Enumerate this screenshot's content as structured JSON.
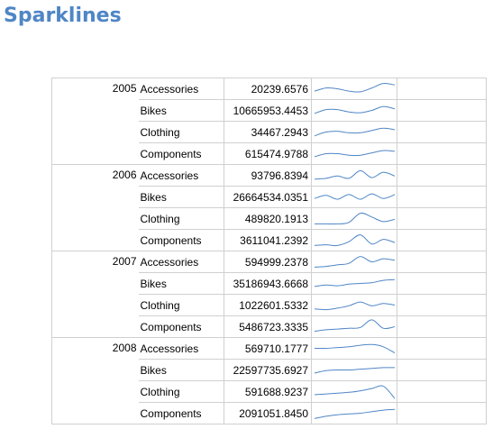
{
  "page": {
    "title": "Sparklines"
  },
  "colors": {
    "title": "#4f86c6",
    "sparkline": "#4f86c6",
    "grid": "#d0d0d0"
  },
  "table": {
    "groups": [
      {
        "year": "2005",
        "rows": [
          {
            "category": "Accessories",
            "value": "20239.6576",
            "spark": [
              0.35,
              0.55,
              0.5,
              0.35,
              0.3,
              0.55,
              0.85,
              0.75
            ]
          },
          {
            "category": "Bikes",
            "value": "10665953.4453",
            "spark": [
              0.3,
              0.55,
              0.55,
              0.4,
              0.35,
              0.5,
              0.75,
              0.6
            ]
          },
          {
            "category": "Clothing",
            "value": "34467.2943",
            "spark": [
              0.25,
              0.5,
              0.55,
              0.45,
              0.45,
              0.6,
              0.75,
              0.65
            ]
          },
          {
            "category": "Components",
            "value": "615474.9788",
            "spark": [
              0.3,
              0.5,
              0.5,
              0.4,
              0.4,
              0.55,
              0.7,
              0.65
            ]
          }
        ]
      },
      {
        "year": "2006",
        "rows": [
          {
            "category": "Accessories",
            "value": "93796.8394",
            "spark": [
              0.25,
              0.3,
              0.45,
              0.3,
              0.8,
              0.35,
              0.7,
              0.45
            ]
          },
          {
            "category": "Bikes",
            "value": "26664534.0351",
            "spark": [
              0.4,
              0.6,
              0.35,
              0.65,
              0.35,
              0.7,
              0.4,
              0.65
            ]
          },
          {
            "category": "Clothing",
            "value": "489820.1913",
            "spark": [
              0.15,
              0.15,
              0.15,
              0.25,
              0.85,
              0.6,
              0.3,
              0.45
            ]
          },
          {
            "category": "Components",
            "value": "3611041.2392",
            "spark": [
              0.15,
              0.2,
              0.15,
              0.4,
              0.85,
              0.25,
              0.55,
              0.35
            ]
          }
        ]
      },
      {
        "year": "2007",
        "rows": [
          {
            "category": "Accessories",
            "value": "594999.2378",
            "spark": [
              0.15,
              0.2,
              0.3,
              0.4,
              0.85,
              0.5,
              0.7,
              0.6
            ]
          },
          {
            "category": "Bikes",
            "value": "35186943.6668",
            "spark": [
              0.3,
              0.4,
              0.35,
              0.45,
              0.5,
              0.55,
              0.7,
              0.75
            ]
          },
          {
            "category": "Clothing",
            "value": "1022601.5332",
            "spark": [
              0.25,
              0.2,
              0.3,
              0.45,
              0.7,
              0.45,
              0.6,
              0.5
            ]
          },
          {
            "category": "Components",
            "value": "5486723.3335",
            "spark": [
              0.2,
              0.3,
              0.35,
              0.4,
              0.45,
              0.95,
              0.4,
              0.5
            ]
          }
        ]
      },
      {
        "year": "2008",
        "rows": [
          {
            "category": "Accessories",
            "value": "569710.1777",
            "spark": [
              0.5,
              0.5,
              0.55,
              0.6,
              0.7,
              0.75,
              0.6,
              0.2
            ]
          },
          {
            "category": "Bikes",
            "value": "22597735.6927",
            "spark": [
              0.3,
              0.45,
              0.5,
              0.5,
              0.55,
              0.6,
              0.65,
              0.65
            ]
          },
          {
            "category": "Clothing",
            "value": "591688.9237",
            "spark": [
              0.3,
              0.35,
              0.4,
              0.45,
              0.55,
              0.7,
              0.85,
              0.05
            ]
          },
          {
            "category": "Components",
            "value": "2091051.8450",
            "spark": [
              0.15,
              0.3,
              0.4,
              0.45,
              0.5,
              0.6,
              0.7,
              0.75
            ]
          }
        ]
      }
    ]
  }
}
